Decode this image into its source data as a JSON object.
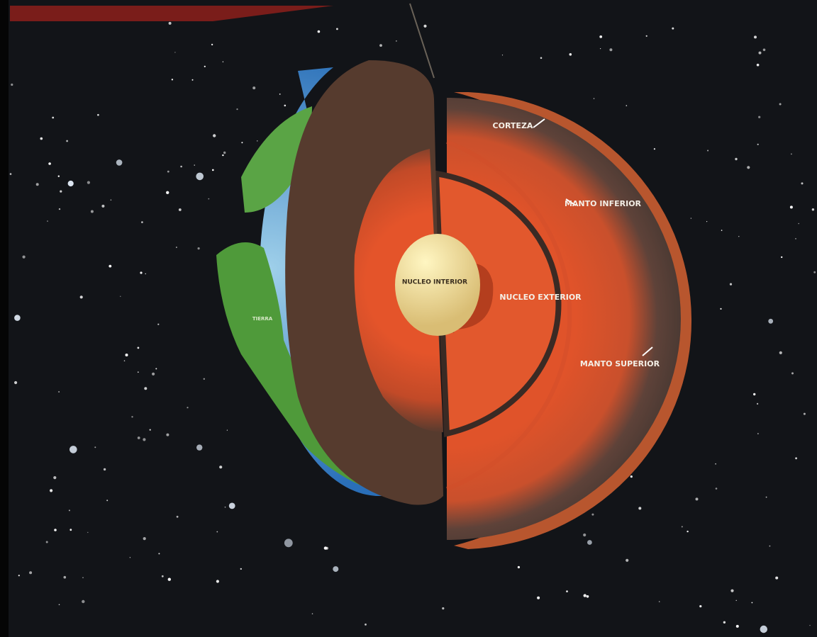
{
  "labels": {
    "crust": "CORTEZA",
    "lower_mantle": "MANTO INFERIOR",
    "inner_core": "NUCLEO INTERIOR",
    "outer_core": "NUCLEO EXTERIOR",
    "upper_mantle": "MANTO SUPERIOR",
    "earth": "TIERRA"
  }
}
